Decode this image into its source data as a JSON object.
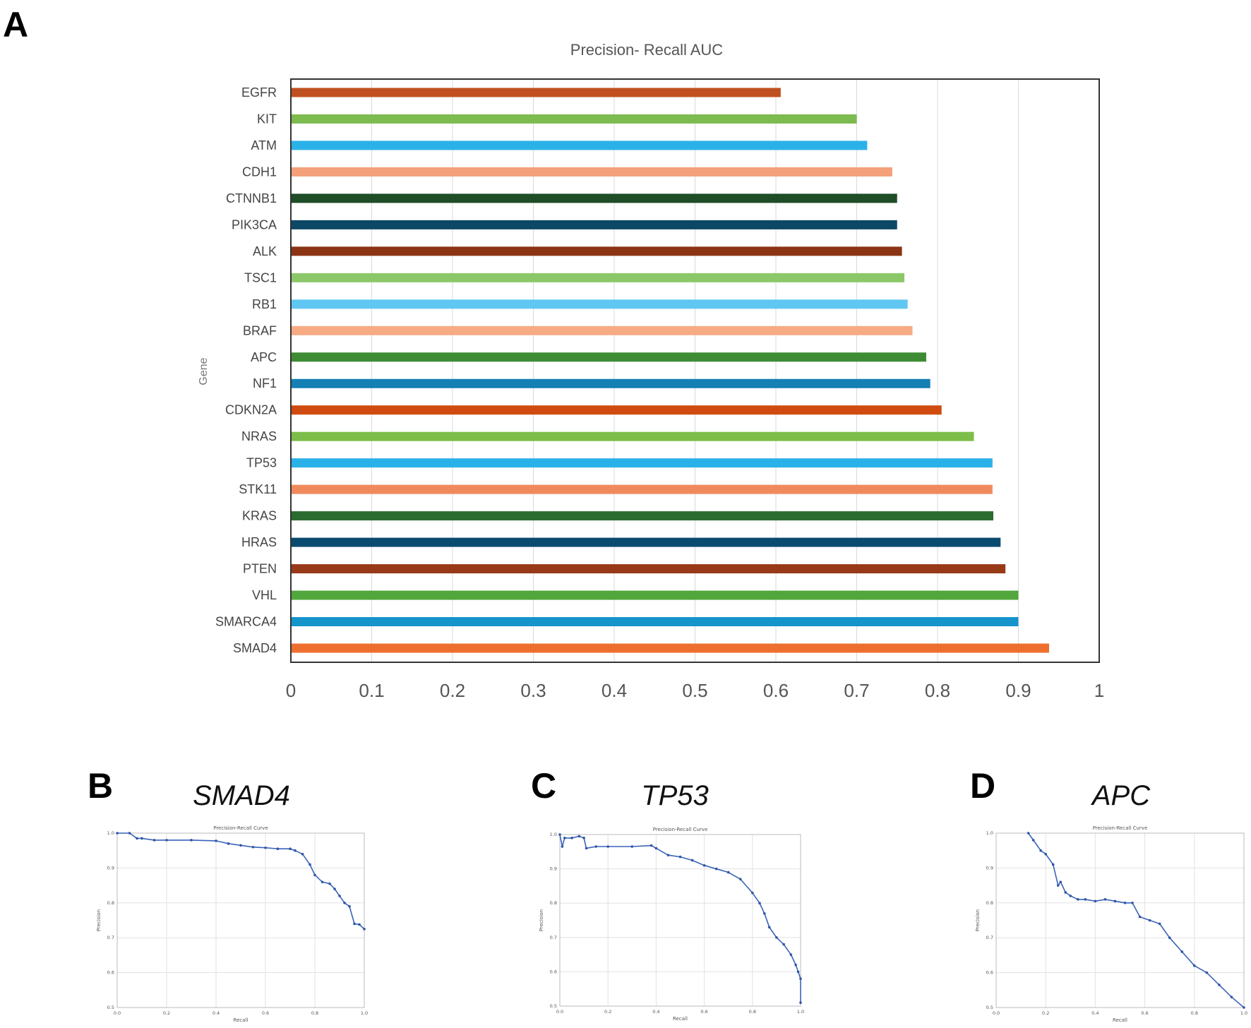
{
  "panels": {
    "a": "A",
    "b": "B",
    "c": "C",
    "d": "D"
  },
  "chart_data": [
    {
      "type": "bar",
      "orientation": "horizontal",
      "title": "Precision- Recall AUC",
      "xlabel": "",
      "ylabel": "Gene",
      "xlim": [
        0,
        1
      ],
      "xticks": [
        "0",
        "0.1",
        "0.2",
        "0.3",
        "0.4",
        "0.5",
        "0.6",
        "0.7",
        "0.8",
        "0.9",
        "1"
      ],
      "grid": true,
      "categories": [
        "EGFR",
        "KIT",
        "ATM",
        "CDH1",
        "CTNNB1",
        "PIK3CA",
        "ALK",
        "TSC1",
        "RB1",
        "BRAF",
        "APC",
        "NF1",
        "CDKN2A",
        "NRAS",
        "TP53",
        "STK11",
        "KRAS",
        "HRAS",
        "PTEN",
        "VHL",
        "SMARCA4",
        "SMAD4"
      ],
      "values": [
        0.606,
        0.7,
        0.713,
        0.744,
        0.75,
        0.75,
        0.756,
        0.759,
        0.763,
        0.769,
        0.786,
        0.791,
        0.805,
        0.845,
        0.868,
        0.868,
        0.869,
        0.878,
        0.884,
        0.9,
        0.9,
        0.938
      ],
      "colors": [
        "#c0501f",
        "#7dba4f",
        "#2ab2e8",
        "#f4a07a",
        "#1e4d26",
        "#0d4766",
        "#8b3414",
        "#8cc86a",
        "#60c6f2",
        "#f6ab85",
        "#3d8c34",
        "#1480b4",
        "#cf4b10",
        "#7dbd4a",
        "#2ab2e8",
        "#f08a5d",
        "#2a6c2f",
        "#0a4c70",
        "#983a17",
        "#51a63c",
        "#1594cc",
        "#ee6f2d"
      ]
    },
    {
      "type": "scatter",
      "gene": "SMAD4",
      "title": "Precision-Recall Curve",
      "xlabel": "Recall",
      "ylabel": "Precision",
      "xlim": [
        0,
        1
      ],
      "ylim": [
        0.5,
        1
      ],
      "xticks": [
        "0.0",
        "0.2",
        "0.4",
        "0.6",
        "0.8",
        "1.0"
      ],
      "yticks": [
        "0.5",
        "0.6",
        "0.7",
        "0.8",
        "0.9",
        "1.0"
      ],
      "x": [
        0.0,
        0.05,
        0.08,
        0.1,
        0.15,
        0.2,
        0.3,
        0.4,
        0.45,
        0.5,
        0.55,
        0.6,
        0.65,
        0.7,
        0.72,
        0.75,
        0.78,
        0.8,
        0.83,
        0.86,
        0.88,
        0.9,
        0.92,
        0.94,
        0.96,
        0.98,
        1.0
      ],
      "y": [
        1.0,
        1.0,
        0.985,
        0.985,
        0.98,
        0.98,
        0.98,
        0.978,
        0.97,
        0.965,
        0.96,
        0.958,
        0.955,
        0.955,
        0.95,
        0.94,
        0.91,
        0.88,
        0.86,
        0.855,
        0.84,
        0.82,
        0.8,
        0.79,
        0.74,
        0.738,
        0.725
      ]
    },
    {
      "type": "scatter",
      "gene": "TP53",
      "title": "Precision-Recall Curve",
      "xlabel": "Recall",
      "ylabel": "Precision",
      "xlim": [
        0,
        1
      ],
      "ylim": [
        0.5,
        1
      ],
      "xticks": [
        "0.0",
        "0.2",
        "0.4",
        "0.6",
        "0.8",
        "1.0"
      ],
      "yticks": [
        "0.5",
        "0.6",
        "0.7",
        "0.8",
        "0.9",
        "1.0"
      ],
      "x": [
        0.0,
        0.01,
        0.02,
        0.05,
        0.08,
        0.1,
        0.11,
        0.15,
        0.2,
        0.3,
        0.38,
        0.4,
        0.45,
        0.5,
        0.55,
        0.6,
        0.65,
        0.7,
        0.75,
        0.8,
        0.83,
        0.85,
        0.87,
        0.9,
        0.93,
        0.96,
        0.98,
        0.99,
        1.0,
        1.0
      ],
      "y": [
        1.0,
        0.965,
        0.99,
        0.99,
        0.995,
        0.99,
        0.96,
        0.965,
        0.965,
        0.965,
        0.968,
        0.96,
        0.94,
        0.935,
        0.925,
        0.91,
        0.9,
        0.89,
        0.87,
        0.83,
        0.8,
        0.77,
        0.73,
        0.7,
        0.68,
        0.65,
        0.62,
        0.6,
        0.58,
        0.51
      ]
    },
    {
      "type": "scatter",
      "gene": "APC",
      "title": "Precision-Recall Curve",
      "xlabel": "Recall",
      "ylabel": "Precision",
      "xlim": [
        0,
        1
      ],
      "ylim": [
        0.5,
        1
      ],
      "xticks": [
        "0.0",
        "0.2",
        "0.4",
        "0.6",
        "0.8",
        "1.0"
      ],
      "yticks": [
        "0.5",
        "0.6",
        "0.7",
        "0.8",
        "0.9",
        "1.0"
      ],
      "x": [
        0.13,
        0.15,
        0.18,
        0.2,
        0.23,
        0.25,
        0.26,
        0.28,
        0.3,
        0.33,
        0.36,
        0.4,
        0.44,
        0.48,
        0.52,
        0.55,
        0.58,
        0.62,
        0.66,
        0.7,
        0.75,
        0.8,
        0.85,
        0.9,
        0.95,
        1.0
      ],
      "y": [
        1.0,
        0.98,
        0.95,
        0.94,
        0.91,
        0.85,
        0.86,
        0.83,
        0.82,
        0.81,
        0.81,
        0.805,
        0.81,
        0.805,
        0.8,
        0.8,
        0.76,
        0.75,
        0.74,
        0.7,
        0.66,
        0.62,
        0.6,
        0.565,
        0.53,
        0.5
      ]
    }
  ]
}
